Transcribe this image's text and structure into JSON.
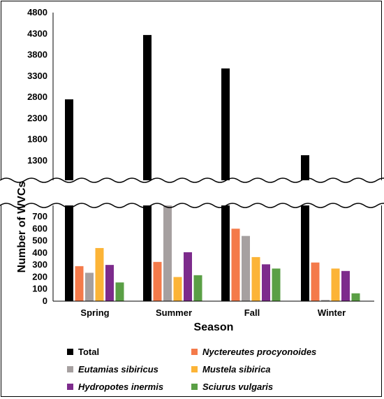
{
  "chart_data": {
    "type": "bar",
    "xlabel": "Season",
    "ylabel": "Number of WVCs",
    "categories": [
      "Spring",
      "Summer",
      "Fall",
      "Winter"
    ],
    "axis_break": true,
    "upper_yticks": [
      "1300",
      "1800",
      "2300",
      "2800",
      "3300",
      "3800",
      "4300",
      "4800"
    ],
    "lower_yticks": [
      "0",
      "100",
      "200",
      "300",
      "400",
      "500",
      "600",
      "700"
    ],
    "series": [
      {
        "name": "Total",
        "color": "#000000",
        "italic": false,
        "values": [
          2750,
          4270,
          3480,
          1430
        ]
      },
      {
        "name": "Nyctereutes procyonoides",
        "color": "#f47a4a",
        "italic": true,
        "values": [
          290,
          325,
          600,
          320
        ]
      },
      {
        "name": "Eutamias sibiricus",
        "color": "#a6a0a0",
        "italic": true,
        "values": [
          235,
          750,
          540,
          10
        ]
      },
      {
        "name": "Mustela sibirica",
        "color": "#fcb437",
        "italic": true,
        "values": [
          440,
          200,
          365,
          270
        ]
      },
      {
        "name": "Hydropotes inermis",
        "color": "#7d2b8c",
        "italic": true,
        "values": [
          300,
          405,
          305,
          250
        ]
      },
      {
        "name": "Sciurus vulgaris",
        "color": "#5a9f45",
        "italic": true,
        "values": [
          155,
          215,
          270,
          65
        ]
      }
    ],
    "legend_position": "bottom",
    "grid": false
  }
}
